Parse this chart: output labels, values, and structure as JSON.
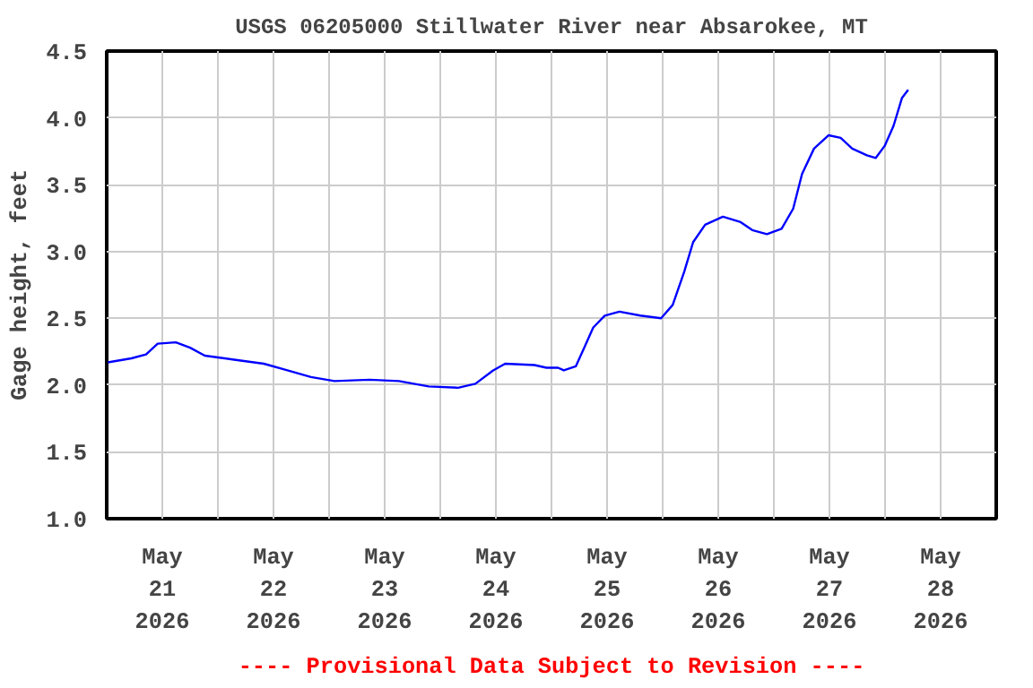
{
  "chart_data": {
    "type": "line",
    "title": "USGS 06205000 Stillwater River near Absarokee, MT",
    "ylabel": "Gage height, feet",
    "annotations": [
      "---- Provisional Data Subject to Revision ----"
    ],
    "x": [
      "2026-05-21T00:15",
      "2026-05-21T05:20",
      "2026-05-21T08:30",
      "2026-05-21T11:00",
      "2026-05-21T14:55",
      "2026-05-21T18:00",
      "2026-05-21T21:10",
      "2026-05-22T03:30",
      "2026-05-22T09:55",
      "2026-05-22T15:00",
      "2026-05-22T20:05",
      "2026-05-23T01:10",
      "2026-05-23T08:45",
      "2026-05-23T15:05",
      "2026-05-23T21:30",
      "2026-05-24T03:50",
      "2026-05-24T07:35",
      "2026-05-24T11:25",
      "2026-05-24T14:00",
      "2026-05-24T20:20",
      "2026-05-24T22:55",
      "2026-05-25T01:25",
      "2026-05-25T02:40",
      "2026-05-25T05:15",
      "2026-05-25T07:05",
      "2026-05-25T09:00",
      "2026-05-25T11:30",
      "2026-05-25T14:40",
      "2026-05-25T19:10",
      "2026-05-25T23:40",
      "2026-05-26T02:10",
      "2026-05-26T04:40",
      "2026-05-26T06:35",
      "2026-05-26T09:10",
      "2026-05-26T13:00",
      "2026-05-26T16:50",
      "2026-05-26T19:20",
      "2026-05-26T22:30",
      "2026-05-27T01:40",
      "2026-05-27T04:10",
      "2026-05-27T06:05",
      "2026-05-27T08:40",
      "2026-05-27T11:50",
      "2026-05-27T14:25",
      "2026-05-27T16:55",
      "2026-05-27T20:05",
      "2026-05-27T22:00",
      "2026-05-27T23:55",
      "2026-05-28T01:50",
      "2026-05-28T03:40",
      "2026-05-28T05:00"
    ],
    "series": [
      {
        "color": "#0000ff",
        "values": [
          2.17,
          2.2,
          2.23,
          2.31,
          2.32,
          2.28,
          2.22,
          2.19,
          2.16,
          2.11,
          2.06,
          2.03,
          2.04,
          2.03,
          1.99,
          1.98,
          2.01,
          2.11,
          2.16,
          2.15,
          2.13,
          2.13,
          2.11,
          2.14,
          2.28,
          2.43,
          2.52,
          2.55,
          2.52,
          2.5,
          2.6,
          2.85,
          3.07,
          3.2,
          3.26,
          3.22,
          3.16,
          3.13,
          3.17,
          3.32,
          3.58,
          3.77,
          3.87,
          3.85,
          3.77,
          3.72,
          3.7,
          3.79,
          3.94,
          4.15,
          4.21
        ]
      }
    ],
    "xlim": [
      "2026-05-21T00:00",
      "2026-05-29T00:00"
    ],
    "xticks": [
      {
        "value": "2026-05-22T00:00",
        "label": null
      },
      {
        "value": "2026-05-23T00:00",
        "label": null
      },
      {
        "value": "2026-05-24T00:00",
        "label": null
      },
      {
        "value": "2026-05-25T00:00",
        "label": null
      },
      {
        "value": "2026-05-26T00:00",
        "label": null
      },
      {
        "value": "2026-05-27T00:00",
        "label": null
      },
      {
        "value": "2026-05-28T00:00",
        "label": null
      },
      {
        "value": "2026-05-21T12:00",
        "label": "May\n21\n2026"
      },
      {
        "value": "2026-05-22T12:00",
        "label": "May\n22\n2026"
      },
      {
        "value": "2026-05-23T12:00",
        "label": "May\n23\n2026"
      },
      {
        "value": "2026-05-24T12:00",
        "label": "May\n24\n2026"
      },
      {
        "value": "2026-05-25T12:00",
        "label": "May\n25\n2026"
      },
      {
        "value": "2026-05-26T12:00",
        "label": "May\n26\n2026"
      },
      {
        "value": "2026-05-27T12:00",
        "label": "May\n27\n2026"
      },
      {
        "value": "2026-05-28T12:00",
        "label": "May\n28\n2026"
      }
    ],
    "ylim": [
      1.0,
      4.5
    ],
    "yticks": [
      {
        "value": 1.0,
        "label": "1.0"
      },
      {
        "value": 1.5,
        "label": "1.5"
      },
      {
        "value": 2.0,
        "label": "2.0"
      },
      {
        "value": 2.5,
        "label": "2.5"
      },
      {
        "value": 3.0,
        "label": "3.0"
      },
      {
        "value": 3.5,
        "label": "3.5"
      },
      {
        "value": 4.0,
        "label": "4.0"
      },
      {
        "value": 4.5,
        "label": "4.5"
      }
    ],
    "grid": true,
    "marker": "none",
    "line_style": "solid"
  }
}
